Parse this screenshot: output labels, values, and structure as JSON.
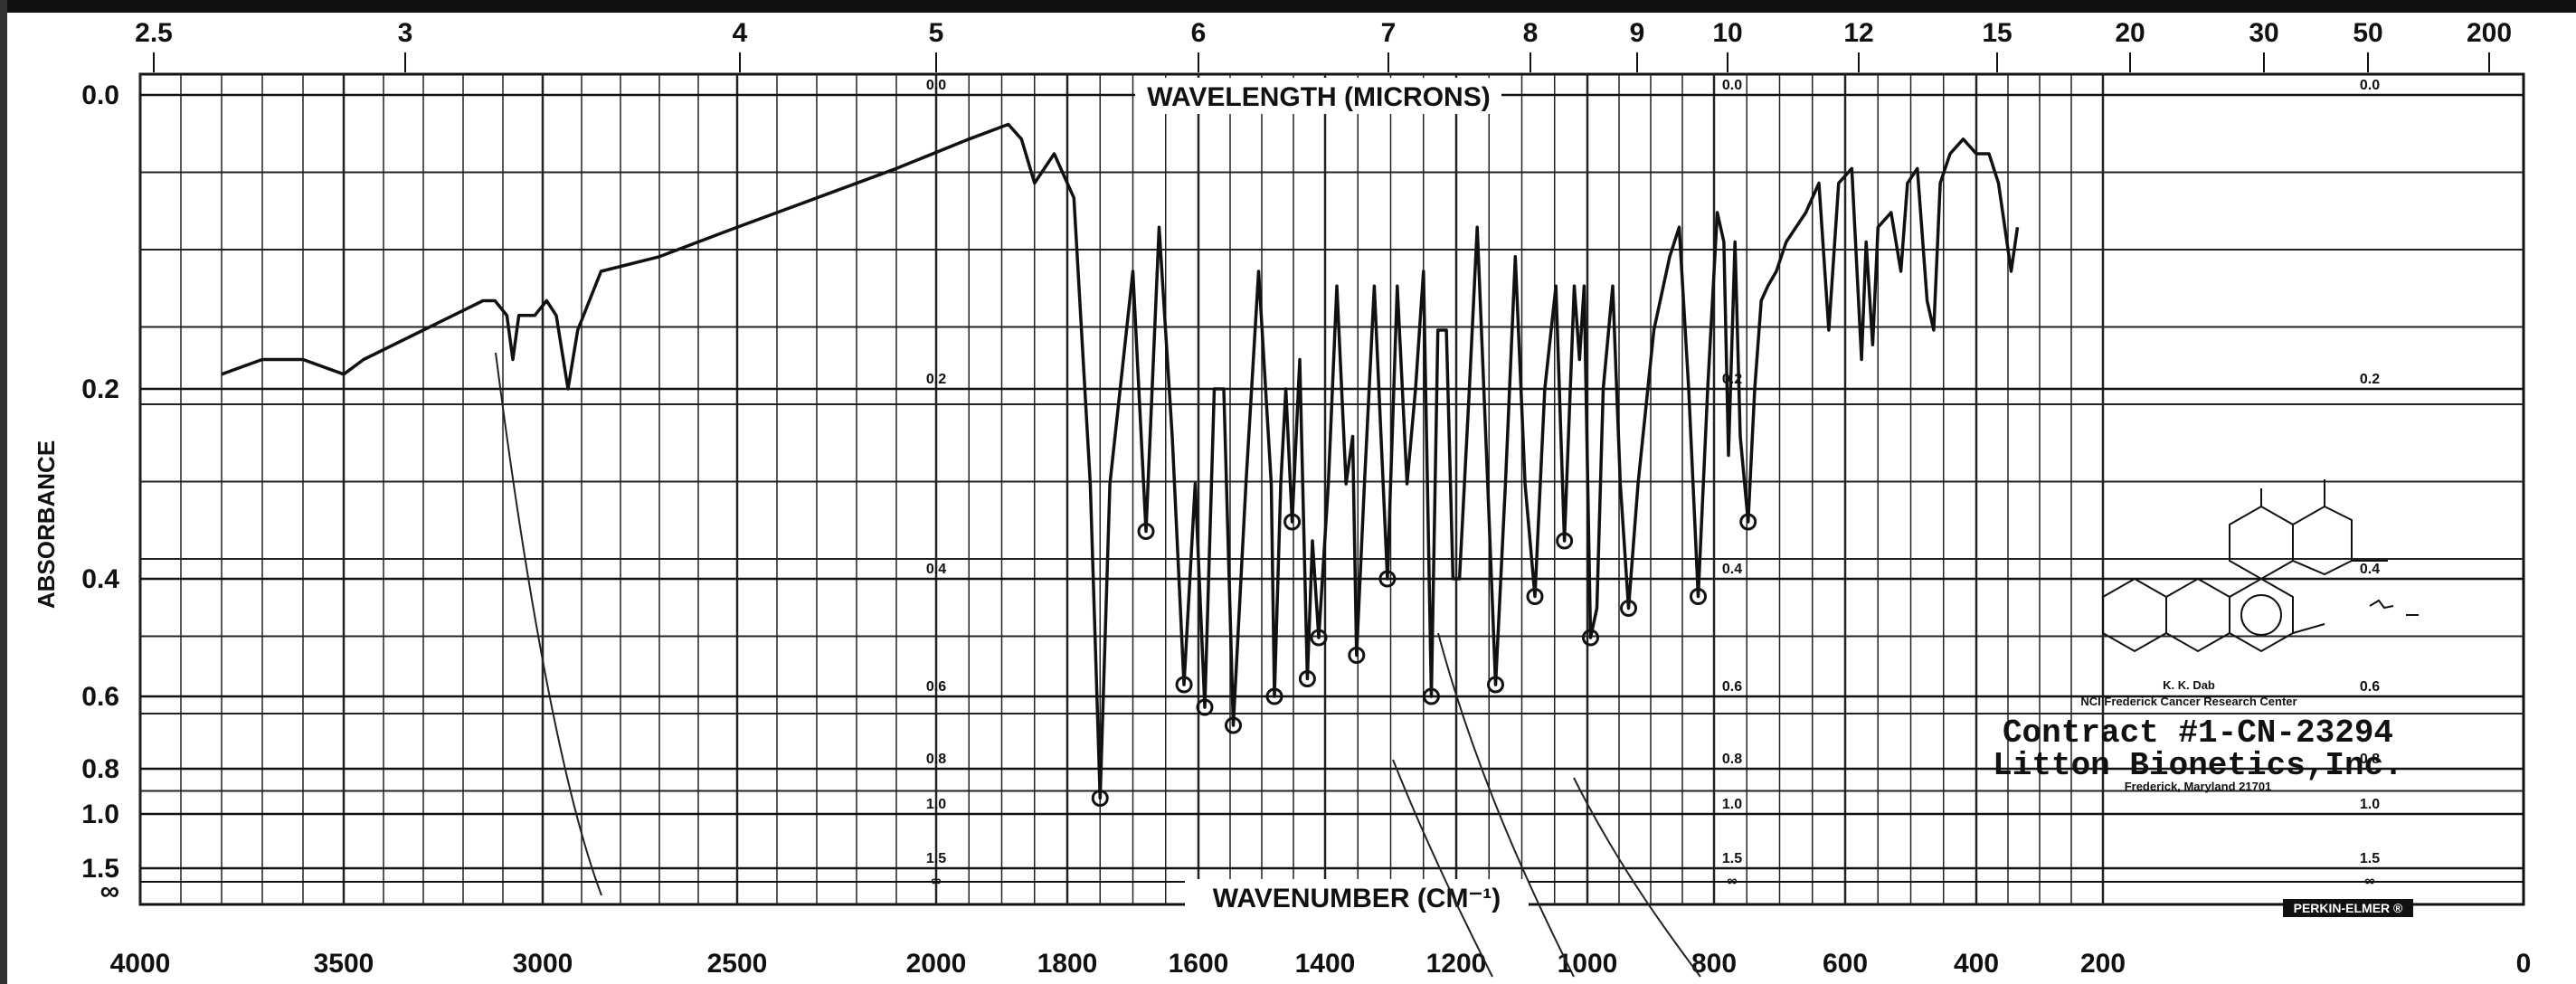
{
  "chart_data": {
    "type": "line",
    "title": "",
    "top_axis": {
      "label": "WAVELENGTH (MICRONS)",
      "ticks": [
        "2.5",
        "3",
        "4",
        "5",
        "6",
        "7",
        "8",
        "9",
        "10",
        "12",
        "15",
        "20",
        "30",
        "50",
        "200"
      ]
    },
    "bottom_axis": {
      "label": "WAVENUMBER (CM⁻¹)",
      "ticks": [
        "4000",
        "3500",
        "3000",
        "2500",
        "2000",
        "1800",
        "1600",
        "1400",
        "1200",
        "1000",
        "800",
        "600",
        "400",
        "200",
        "0"
      ]
    },
    "left_axis": {
      "label": "ABSORBANCE",
      "ticks": [
        "0.0",
        "0.2",
        "0.4",
        "0.6",
        "0.8",
        "1.0",
        "1.5",
        "∞"
      ]
    },
    "inner_scale_ticks": [
      "0.0",
      "0.2",
      "0.4",
      "0.6",
      "0.8",
      "1.0",
      "1.5",
      "∞"
    ],
    "grid": true,
    "series": [
      {
        "name": "",
        "points": [
          [
            3800,
            0.19
          ],
          [
            3700,
            0.18
          ],
          [
            3600,
            0.18
          ],
          [
            3500,
            0.19
          ],
          [
            3450,
            0.18
          ],
          [
            3300,
            0.16
          ],
          [
            3150,
            0.14
          ],
          [
            3120,
            0.14
          ],
          [
            3090,
            0.15
          ],
          [
            3075,
            0.18
          ],
          [
            3060,
            0.15
          ],
          [
            3020,
            0.15
          ],
          [
            2990,
            0.14
          ],
          [
            2965,
            0.15
          ],
          [
            2935,
            0.2
          ],
          [
            2910,
            0.16
          ],
          [
            2850,
            0.12
          ],
          [
            2700,
            0.11
          ],
          [
            2500,
            0.09
          ],
          [
            2300,
            0.07
          ],
          [
            2100,
            0.05
          ],
          [
            1950,
            0.03
          ],
          [
            1890,
            0.02
          ],
          [
            1870,
            0.03
          ],
          [
            1850,
            0.06
          ],
          [
            1820,
            0.04
          ],
          [
            1790,
            0.07
          ],
          [
            1765,
            0.3
          ],
          [
            1750,
            0.93
          ],
          [
            1735,
            0.3
          ],
          [
            1700,
            0.12
          ],
          [
            1680,
            0.35
          ],
          [
            1660,
            0.09
          ],
          [
            1640,
            0.25
          ],
          [
            1622,
            0.58
          ],
          [
            1605,
            0.3
          ],
          [
            1590,
            0.63
          ],
          [
            1575,
            0.2
          ],
          [
            1560,
            0.2
          ],
          [
            1545,
            0.68
          ],
          [
            1525,
            0.3
          ],
          [
            1505,
            0.12
          ],
          [
            1485,
            0.3
          ],
          [
            1480,
            0.6
          ],
          [
            1470,
            0.3
          ],
          [
            1462,
            0.2
          ],
          [
            1452,
            0.34
          ],
          [
            1440,
            0.18
          ],
          [
            1428,
            0.57
          ],
          [
            1420,
            0.36
          ],
          [
            1410,
            0.5
          ],
          [
            1395,
            0.3
          ],
          [
            1382,
            0.13
          ],
          [
            1368,
            0.3
          ],
          [
            1358,
            0.25
          ],
          [
            1352,
            0.53
          ],
          [
            1340,
            0.3
          ],
          [
            1325,
            0.13
          ],
          [
            1305,
            0.4
          ],
          [
            1290,
            0.13
          ],
          [
            1275,
            0.3
          ],
          [
            1262,
            0.2
          ],
          [
            1250,
            0.12
          ],
          [
            1238,
            0.6
          ],
          [
            1228,
            0.16
          ],
          [
            1215,
            0.16
          ],
          [
            1205,
            0.4
          ],
          [
            1195,
            0.4
          ],
          [
            1180,
            0.2
          ],
          [
            1168,
            0.09
          ],
          [
            1152,
            0.3
          ],
          [
            1140,
            0.58
          ],
          [
            1125,
            0.3
          ],
          [
            1110,
            0.11
          ],
          [
            1095,
            0.3
          ],
          [
            1080,
            0.43
          ],
          [
            1065,
            0.2
          ],
          [
            1048,
            0.13
          ],
          [
            1035,
            0.36
          ],
          [
            1020,
            0.13
          ],
          [
            1012,
            0.18
          ],
          [
            1005,
            0.13
          ],
          [
            995,
            0.5
          ],
          [
            985,
            0.45
          ],
          [
            975,
            0.2
          ],
          [
            960,
            0.13
          ],
          [
            948,
            0.3
          ],
          [
            935,
            0.45
          ],
          [
            920,
            0.3
          ],
          [
            895,
            0.16
          ],
          [
            870,
            0.11
          ],
          [
            855,
            0.09
          ],
          [
            840,
            0.2
          ],
          [
            825,
            0.43
          ],
          [
            810,
            0.2
          ],
          [
            795,
            0.08
          ],
          [
            785,
            0.1
          ],
          [
            778,
            0.27
          ],
          [
            768,
            0.1
          ],
          [
            760,
            0.25
          ],
          [
            748,
            0.34
          ],
          [
            738,
            0.2
          ],
          [
            728,
            0.14
          ],
          [
            718,
            0.13
          ],
          [
            705,
            0.12
          ],
          [
            690,
            0.1
          ],
          [
            660,
            0.08
          ],
          [
            640,
            0.06
          ],
          [
            625,
            0.16
          ],
          [
            610,
            0.06
          ],
          [
            590,
            0.05
          ],
          [
            575,
            0.18
          ],
          [
            568,
            0.1
          ],
          [
            558,
            0.17
          ],
          [
            550,
            0.09
          ],
          [
            530,
            0.08
          ],
          [
            515,
            0.12
          ],
          [
            505,
            0.06
          ],
          [
            490,
            0.05
          ],
          [
            475,
            0.14
          ],
          [
            465,
            0.16
          ],
          [
            455,
            0.06
          ],
          [
            440,
            0.04
          ],
          [
            420,
            0.03
          ],
          [
            400,
            0.04
          ],
          [
            380,
            0.04
          ],
          [
            365,
            0.06
          ],
          [
            355,
            0.09
          ],
          [
            345,
            0.12
          ],
          [
            335,
            0.09
          ]
        ]
      }
    ],
    "annotations": {
      "contract": "Contract #1-CN-23294",
      "company": "Litton Bionetics,Inc.",
      "location": "Frederick, Maryland 21701",
      "analyst": "K. K. Dab",
      "center": "NCI Frederick Cancer Research Center",
      "brand": "PERKIN-ELMER ®"
    }
  }
}
